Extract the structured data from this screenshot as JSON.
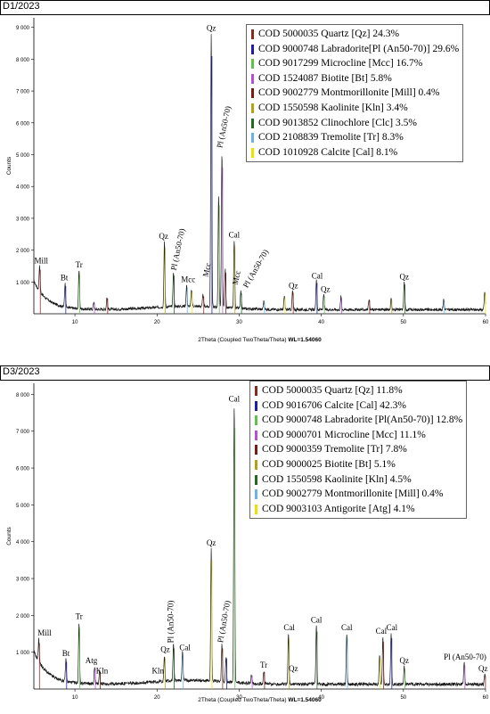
{
  "chart_data": [
    {
      "type": "line",
      "panel_title": "D1/2023",
      "xlabel": "2Theta (Coupled TwoTheta/Theta)",
      "xlabel_suffix": "WL=1.54060",
      "ylabel": "Counts",
      "xlim": [
        5,
        60
      ],
      "ylim": [
        0,
        9300
      ],
      "xticks": [
        10,
        20,
        30,
        40,
        50,
        60
      ],
      "yticks": [
        1000,
        2000,
        3000,
        4000,
        5000,
        6000,
        7000,
        8000,
        9000
      ],
      "ytick_labels": [
        "1 000",
        "2 000",
        "3 000",
        "4 000",
        "5 000",
        "6 000",
        "7 000",
        "8 000",
        "9 000"
      ],
      "series_color": "#1a1a1a",
      "peaks": [
        {
          "x": 5.7,
          "y": 1500
        },
        {
          "x": 8.8,
          "y": 950
        },
        {
          "x": 10.5,
          "y": 1350
        },
        {
          "x": 12.3,
          "y": 380
        },
        {
          "x": 13.9,
          "y": 520
        },
        {
          "x": 20.9,
          "y": 2250
        },
        {
          "x": 22.0,
          "y": 1300
        },
        {
          "x": 23.6,
          "y": 900
        },
        {
          "x": 24.2,
          "y": 750
        },
        {
          "x": 25.6,
          "y": 600
        },
        {
          "x": 26.6,
          "y": 8800
        },
        {
          "x": 27.5,
          "y": 3700
        },
        {
          "x": 27.9,
          "y": 5000
        },
        {
          "x": 28.3,
          "y": 1400
        },
        {
          "x": 29.4,
          "y": 2300
        },
        {
          "x": 30.2,
          "y": 700
        },
        {
          "x": 33.0,
          "y": 400
        },
        {
          "x": 35.5,
          "y": 550
        },
        {
          "x": 36.5,
          "y": 720
        },
        {
          "x": 39.4,
          "y": 1050
        },
        {
          "x": 40.3,
          "y": 600
        },
        {
          "x": 42.4,
          "y": 540
        },
        {
          "x": 45.8,
          "y": 460
        },
        {
          "x": 48.5,
          "y": 460
        },
        {
          "x": 50.1,
          "y": 1000
        },
        {
          "x": 54.9,
          "y": 450
        },
        {
          "x": 59.9,
          "y": 700
        }
      ],
      "annotations": [
        {
          "text": "Mill",
          "x": 5.9,
          "y": 1580
        },
        {
          "text": "Bt",
          "x": 8.7,
          "y": 1050
        },
        {
          "text": "Tr",
          "x": 10.5,
          "y": 1450
        },
        {
          "text": "Qz",
          "x": 20.8,
          "y": 2350
        },
        {
          "text": "Pl (An50-70)",
          "x": 22.3,
          "y": 1350,
          "rotate": -78
        },
        {
          "text": "Mcc",
          "x": 23.8,
          "y": 1000
        },
        {
          "text": "Qz",
          "x": 26.6,
          "y": 8900
        },
        {
          "text": "Mcc",
          "x": 26.2,
          "y": 1150,
          "rotate": -78
        },
        {
          "text": "Pl (An50-70)",
          "x": 27.9,
          "y": 5200,
          "rotate": -78
        },
        {
          "text": "Cal",
          "x": 29.4,
          "y": 2400
        },
        {
          "text": "Mcc",
          "x": 29.8,
          "y": 900,
          "rotate": -78
        },
        {
          "text": "Pl (An50-70)",
          "x": 31.0,
          "y": 800,
          "rotate": -60
        },
        {
          "text": "Qz",
          "x": 36.6,
          "y": 800
        },
        {
          "text": "Cal",
          "x": 39.5,
          "y": 1100
        },
        {
          "text": "Qz",
          "x": 40.5,
          "y": 680
        },
        {
          "text": "Qz",
          "x": 50.1,
          "y": 1080
        }
      ],
      "legend": [
        {
          "text": "COD 5000035 Quartz [Qz] 24.3%",
          "color": "#8b2a1a"
        },
        {
          "text": "COD 9000748 Labradorite[Pl (An50-70)] 29.6%",
          "color": "#1c1cb0"
        },
        {
          "text": "COD 9017299 Microcline [Mcc] 16.7%",
          "color": "#5ec24a"
        },
        {
          "text": "COD 1524087 Biotite [Bt] 5.8%",
          "color": "#b64fd6"
        },
        {
          "text": "COD 9002779 Montmorillonite [Mill] 0.4%",
          "color": "#7a1a14"
        },
        {
          "text": "COD 1550598 Kaolinite [Kln] 3.4%",
          "color": "#b2a316"
        },
        {
          "text": "COD 9013852 Clinochlore [Clc] 3.5%",
          "color": "#1f6b1f"
        },
        {
          "text": "COD 2108839 Tremolite [Tr] 8.3%",
          "color": "#6ab3e2"
        },
        {
          "text": "COD 1010928 Calcite [Cal] 8.1%",
          "color": "#e8e400"
        }
      ]
    },
    {
      "type": "line",
      "panel_title": "D3/2023",
      "xlabel": "2Theta (Coupled TwoTheta/Theta)",
      "xlabel_suffix": "WL=1.54060",
      "ylabel": "Counts",
      "xlim": [
        5,
        60
      ],
      "ylim": [
        0,
        8300
      ],
      "xticks": [
        10,
        20,
        30,
        40,
        50,
        60
      ],
      "yticks": [
        1000,
        2000,
        3000,
        4000,
        5000,
        6000,
        7000,
        8000
      ],
      "ytick_labels": [
        "1 000",
        "2 000",
        "3 000",
        "4 000",
        "5 000",
        "6 000",
        "7 000",
        "8 000"
      ],
      "series_color": "#1a1a1a",
      "peaks": [
        {
          "x": 5.6,
          "y": 1350
        },
        {
          "x": 8.9,
          "y": 800
        },
        {
          "x": 10.5,
          "y": 1800
        },
        {
          "x": 12.4,
          "y": 600
        },
        {
          "x": 13.0,
          "y": 500
        },
        {
          "x": 20.9,
          "y": 900
        },
        {
          "x": 22.0,
          "y": 1200
        },
        {
          "x": 23.1,
          "y": 1000
        },
        {
          "x": 26.6,
          "y": 3800
        },
        {
          "x": 27.9,
          "y": 1200
        },
        {
          "x": 28.4,
          "y": 900
        },
        {
          "x": 29.4,
          "y": 7700
        },
        {
          "x": 31.5,
          "y": 400
        },
        {
          "x": 33.0,
          "y": 500
        },
        {
          "x": 36.0,
          "y": 1500
        },
        {
          "x": 39.4,
          "y": 1700
        },
        {
          "x": 43.1,
          "y": 1500
        },
        {
          "x": 47.1,
          "y": 900
        },
        {
          "x": 47.5,
          "y": 1400
        },
        {
          "x": 48.5,
          "y": 1500
        },
        {
          "x": 50.1,
          "y": 600
        },
        {
          "x": 57.4,
          "y": 700
        },
        {
          "x": 59.9,
          "y": 400
        }
      ],
      "annotations": [
        {
          "text": "Mill",
          "x": 6.3,
          "y": 1450
        },
        {
          "text": "Bt",
          "x": 8.9,
          "y": 900
        },
        {
          "text": "Tr",
          "x": 10.5,
          "y": 1900
        },
        {
          "text": "Atg",
          "x": 12.0,
          "y": 700
        },
        {
          "text": "Kln",
          "x": 13.3,
          "y": 420
        },
        {
          "text": "Kln",
          "x": 20.1,
          "y": 420
        },
        {
          "text": "Qz",
          "x": 21.0,
          "y": 1000
        },
        {
          "text": "Pl (An50-70)",
          "x": 22.0,
          "y": 1250,
          "rotate": -90
        },
        {
          "text": "Cal",
          "x": 23.4,
          "y": 1050
        },
        {
          "text": "Qz",
          "x": 26.6,
          "y": 3900
        },
        {
          "text": "Pl (An50-70)",
          "x": 28.0,
          "y": 1250,
          "rotate": -80
        },
        {
          "text": "Cal",
          "x": 29.4,
          "y": 7800
        },
        {
          "text": "Tr",
          "x": 33.0,
          "y": 580
        },
        {
          "text": "Cal",
          "x": 36.1,
          "y": 1600
        },
        {
          "text": "Qz",
          "x": 36.6,
          "y": 480
        },
        {
          "text": "Cal",
          "x": 39.4,
          "y": 1800
        },
        {
          "text": "Cal",
          "x": 43.1,
          "y": 1600
        },
        {
          "text": "Cal",
          "x": 47.3,
          "y": 1500
        },
        {
          "text": "Cal",
          "x": 48.6,
          "y": 1600
        },
        {
          "text": "Qz",
          "x": 50.1,
          "y": 700
        },
        {
          "text": "Pl (An50-70)",
          "x": 57.5,
          "y": 800
        },
        {
          "text": "Qz",
          "x": 59.7,
          "y": 480
        }
      ],
      "legend": [
        {
          "text": "COD 5000035 Quartz [Qz] 11.8%",
          "color": "#8b2a1a"
        },
        {
          "text": "COD 9016706 Calcite [Cal] 42.3%",
          "color": "#1c1cb0"
        },
        {
          "text": "COD 9000748 Labradorite [Pl(An50-70)] 12.8%",
          "color": "#5ec24a"
        },
        {
          "text": "COD 9000701 Microcline [Mcc] 11.1%",
          "color": "#b64fd6"
        },
        {
          "text": "COD 9000359 Tremolite [Tr] 7.8%",
          "color": "#7a1a14"
        },
        {
          "text": "COD 9000025 Biotite [Bt] 5.1%",
          "color": "#b2a316"
        },
        {
          "text": "COD 1550598 Kaolinite [Kln] 4.5%",
          "color": "#1f6b1f"
        },
        {
          "text": "COD 9002779 Montmorillonite [Mill] 0.4%",
          "color": "#6ab3e2"
        },
        {
          "text": "COD 9003103 Antigorite [Atg] 4.1%",
          "color": "#e8e400"
        }
      ]
    }
  ]
}
